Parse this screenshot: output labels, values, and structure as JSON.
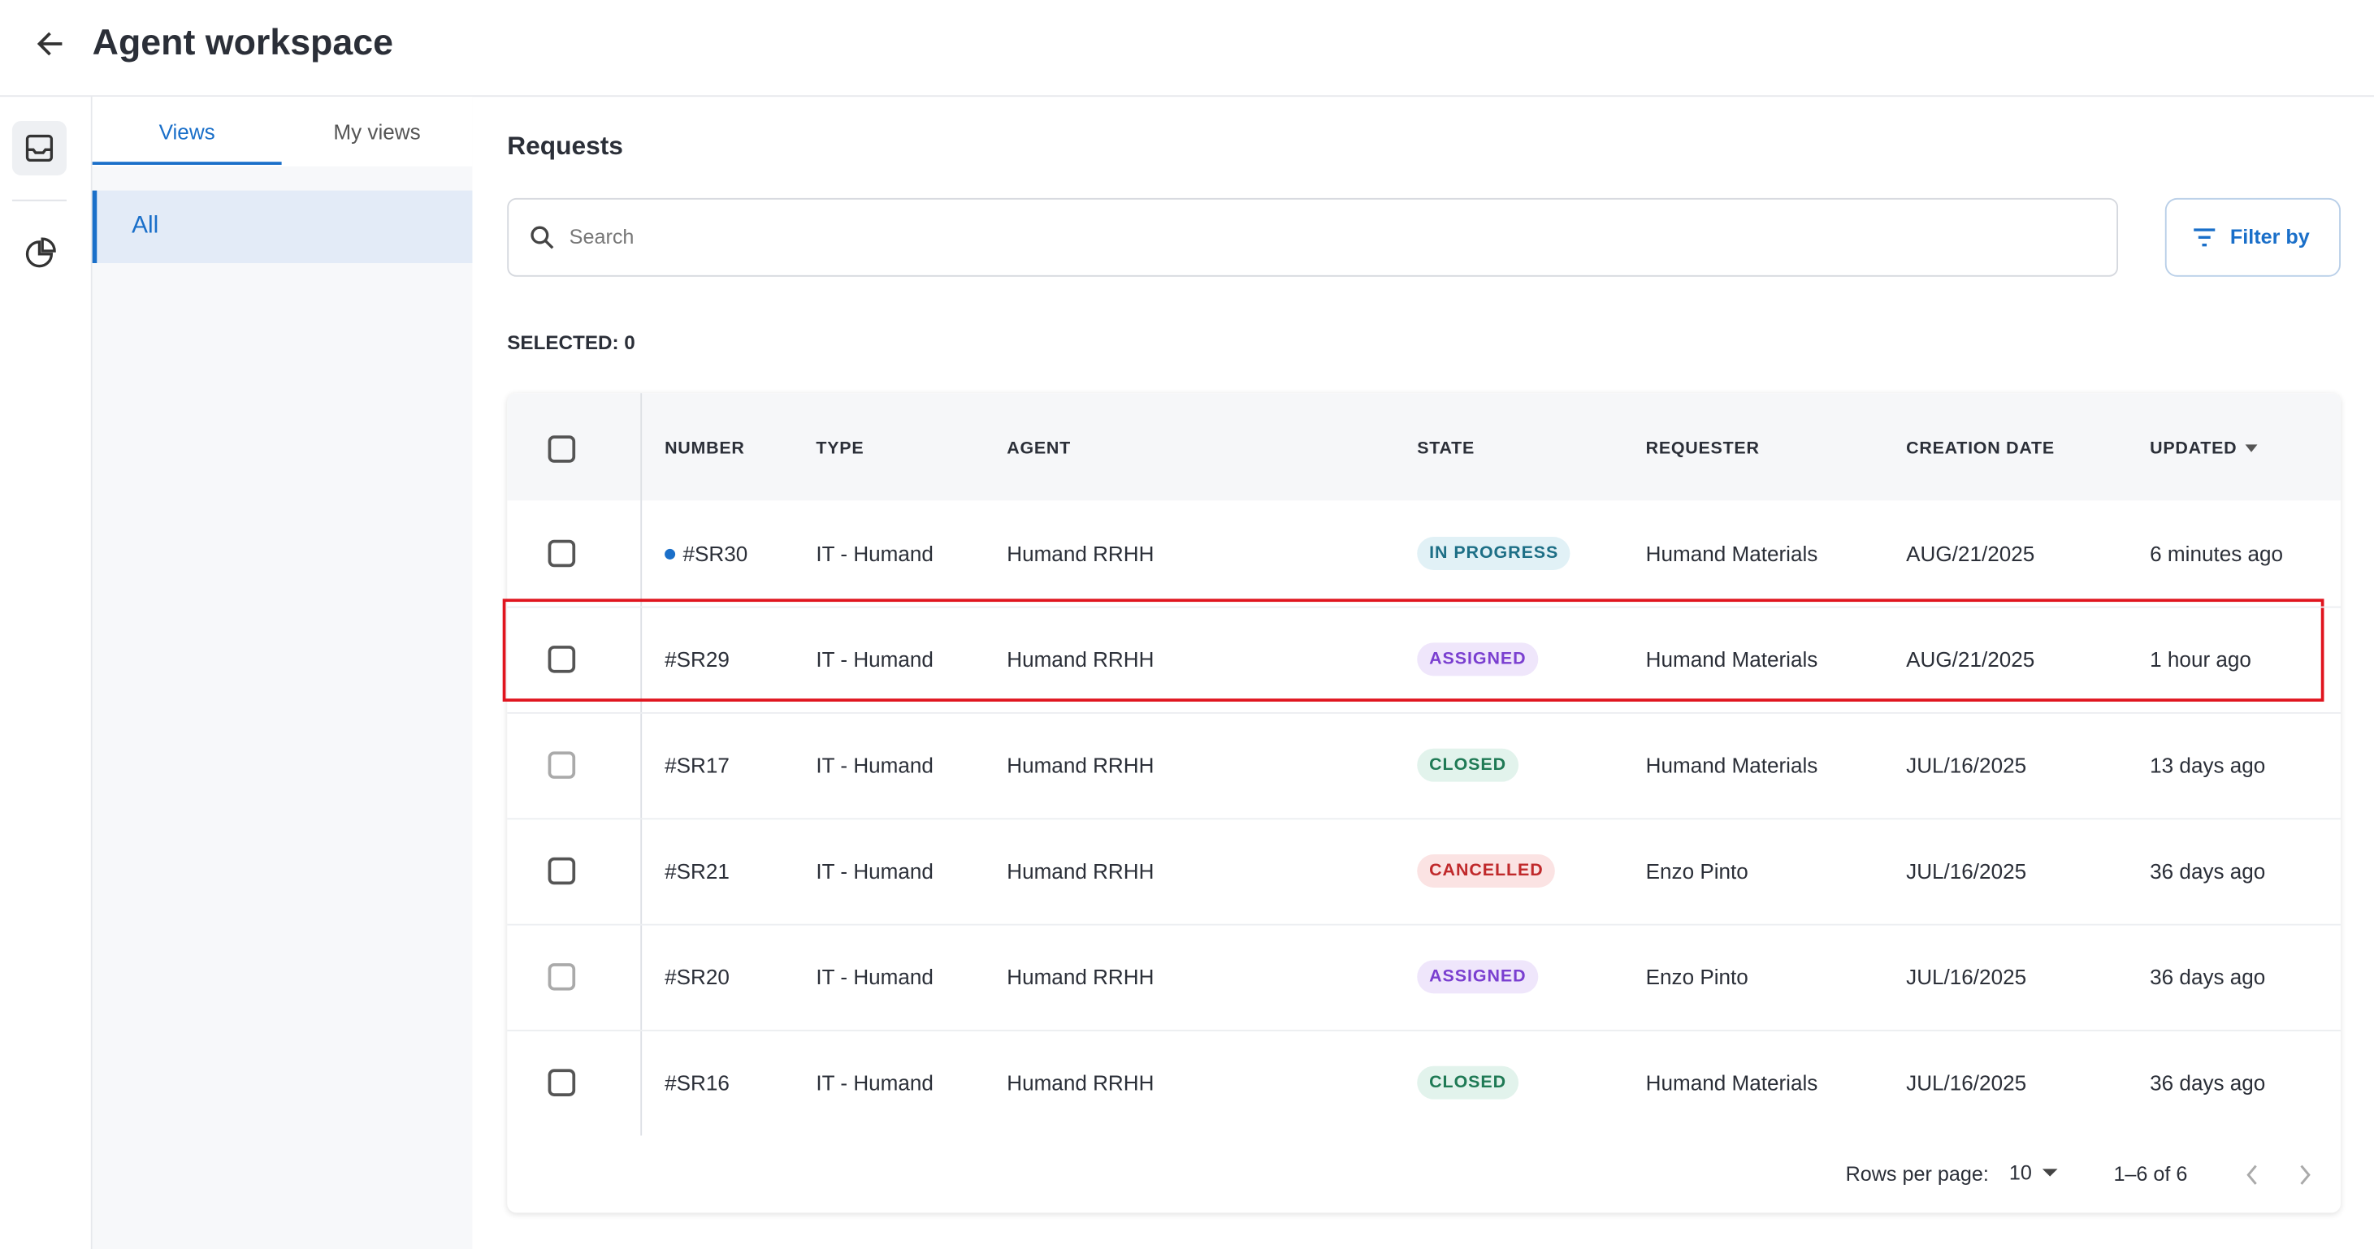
{
  "header": {
    "title": "Agent workspace"
  },
  "sidebar": {
    "tabs": [
      "Views",
      "My views"
    ],
    "items": [
      "All"
    ]
  },
  "main": {
    "title": "Requests",
    "search_placeholder": "Search",
    "filter_button": "Filter by",
    "selected": "SELECTED: 0"
  },
  "table": {
    "columns": [
      "NUMBER",
      "TYPE",
      "AGENT",
      "STATE",
      "REQUESTER",
      "CREATION DATE",
      "UPDATED"
    ],
    "rows": [
      [
        "#SR30",
        "IT - Humand",
        "Humand RRHH",
        "IN PROGRESS",
        "Humand Materials",
        "AUG/21/2025",
        "6 minutes ago"
      ],
      [
        "#SR29",
        "IT - Humand",
        "Humand RRHH",
        "ASSIGNED",
        "Humand Materials",
        "AUG/21/2025",
        "1 hour ago"
      ],
      [
        "#SR17",
        "IT - Humand",
        "Humand RRHH",
        "CLOSED",
        "Humand Materials",
        "JUL/16/2025",
        "13 days ago"
      ],
      [
        "#SR21",
        "IT - Humand",
        "Humand RRHH",
        "CANCELLED",
        "Enzo Pinto",
        "JUL/16/2025",
        "36 days ago"
      ],
      [
        "#SR20",
        "IT - Humand",
        "Humand RRHH",
        "ASSIGNED",
        "Enzo Pinto",
        "JUL/16/2025",
        "36 days ago"
      ],
      [
        "#SR16",
        "IT - Humand",
        "Humand RRHH",
        "CLOSED",
        "Humand Materials",
        "JUL/16/2025",
        "36 days ago"
      ]
    ],
    "pagination": {
      "rows_per_page_label": "Rows per page:",
      "rows_per_page": "10",
      "range": "1–6 of 6"
    }
  }
}
